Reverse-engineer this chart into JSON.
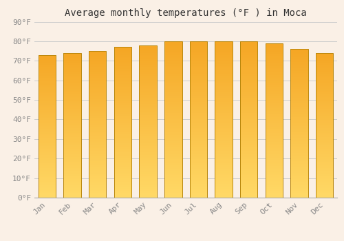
{
  "months": [
    "Jan",
    "Feb",
    "Mar",
    "Apr",
    "May",
    "Jun",
    "Jul",
    "Aug",
    "Sep",
    "Oct",
    "Nov",
    "Dec"
  ],
  "values": [
    73,
    74,
    75,
    77,
    78,
    80,
    80,
    80,
    80,
    79,
    76,
    74
  ],
  "title": "Average monthly temperatures (°F ) in Moca",
  "ylim": [
    0,
    90
  ],
  "yticks": [
    0,
    10,
    20,
    30,
    40,
    50,
    60,
    70,
    80,
    90
  ],
  "ytick_labels": [
    "0°F",
    "10°F",
    "20°F",
    "30°F",
    "40°F",
    "50°F",
    "60°F",
    "70°F",
    "80°F",
    "90°F"
  ],
  "bar_color_top": "#F5A623",
  "bar_color_bottom": "#FFD966",
  "bar_edge_color": "#B8860B",
  "background_color": "#FAF0E6",
  "plot_bg_color": "#FAF0E6",
  "grid_color": "#cccccc",
  "title_fontsize": 10,
  "tick_fontsize": 8,
  "bar_width": 0.7
}
